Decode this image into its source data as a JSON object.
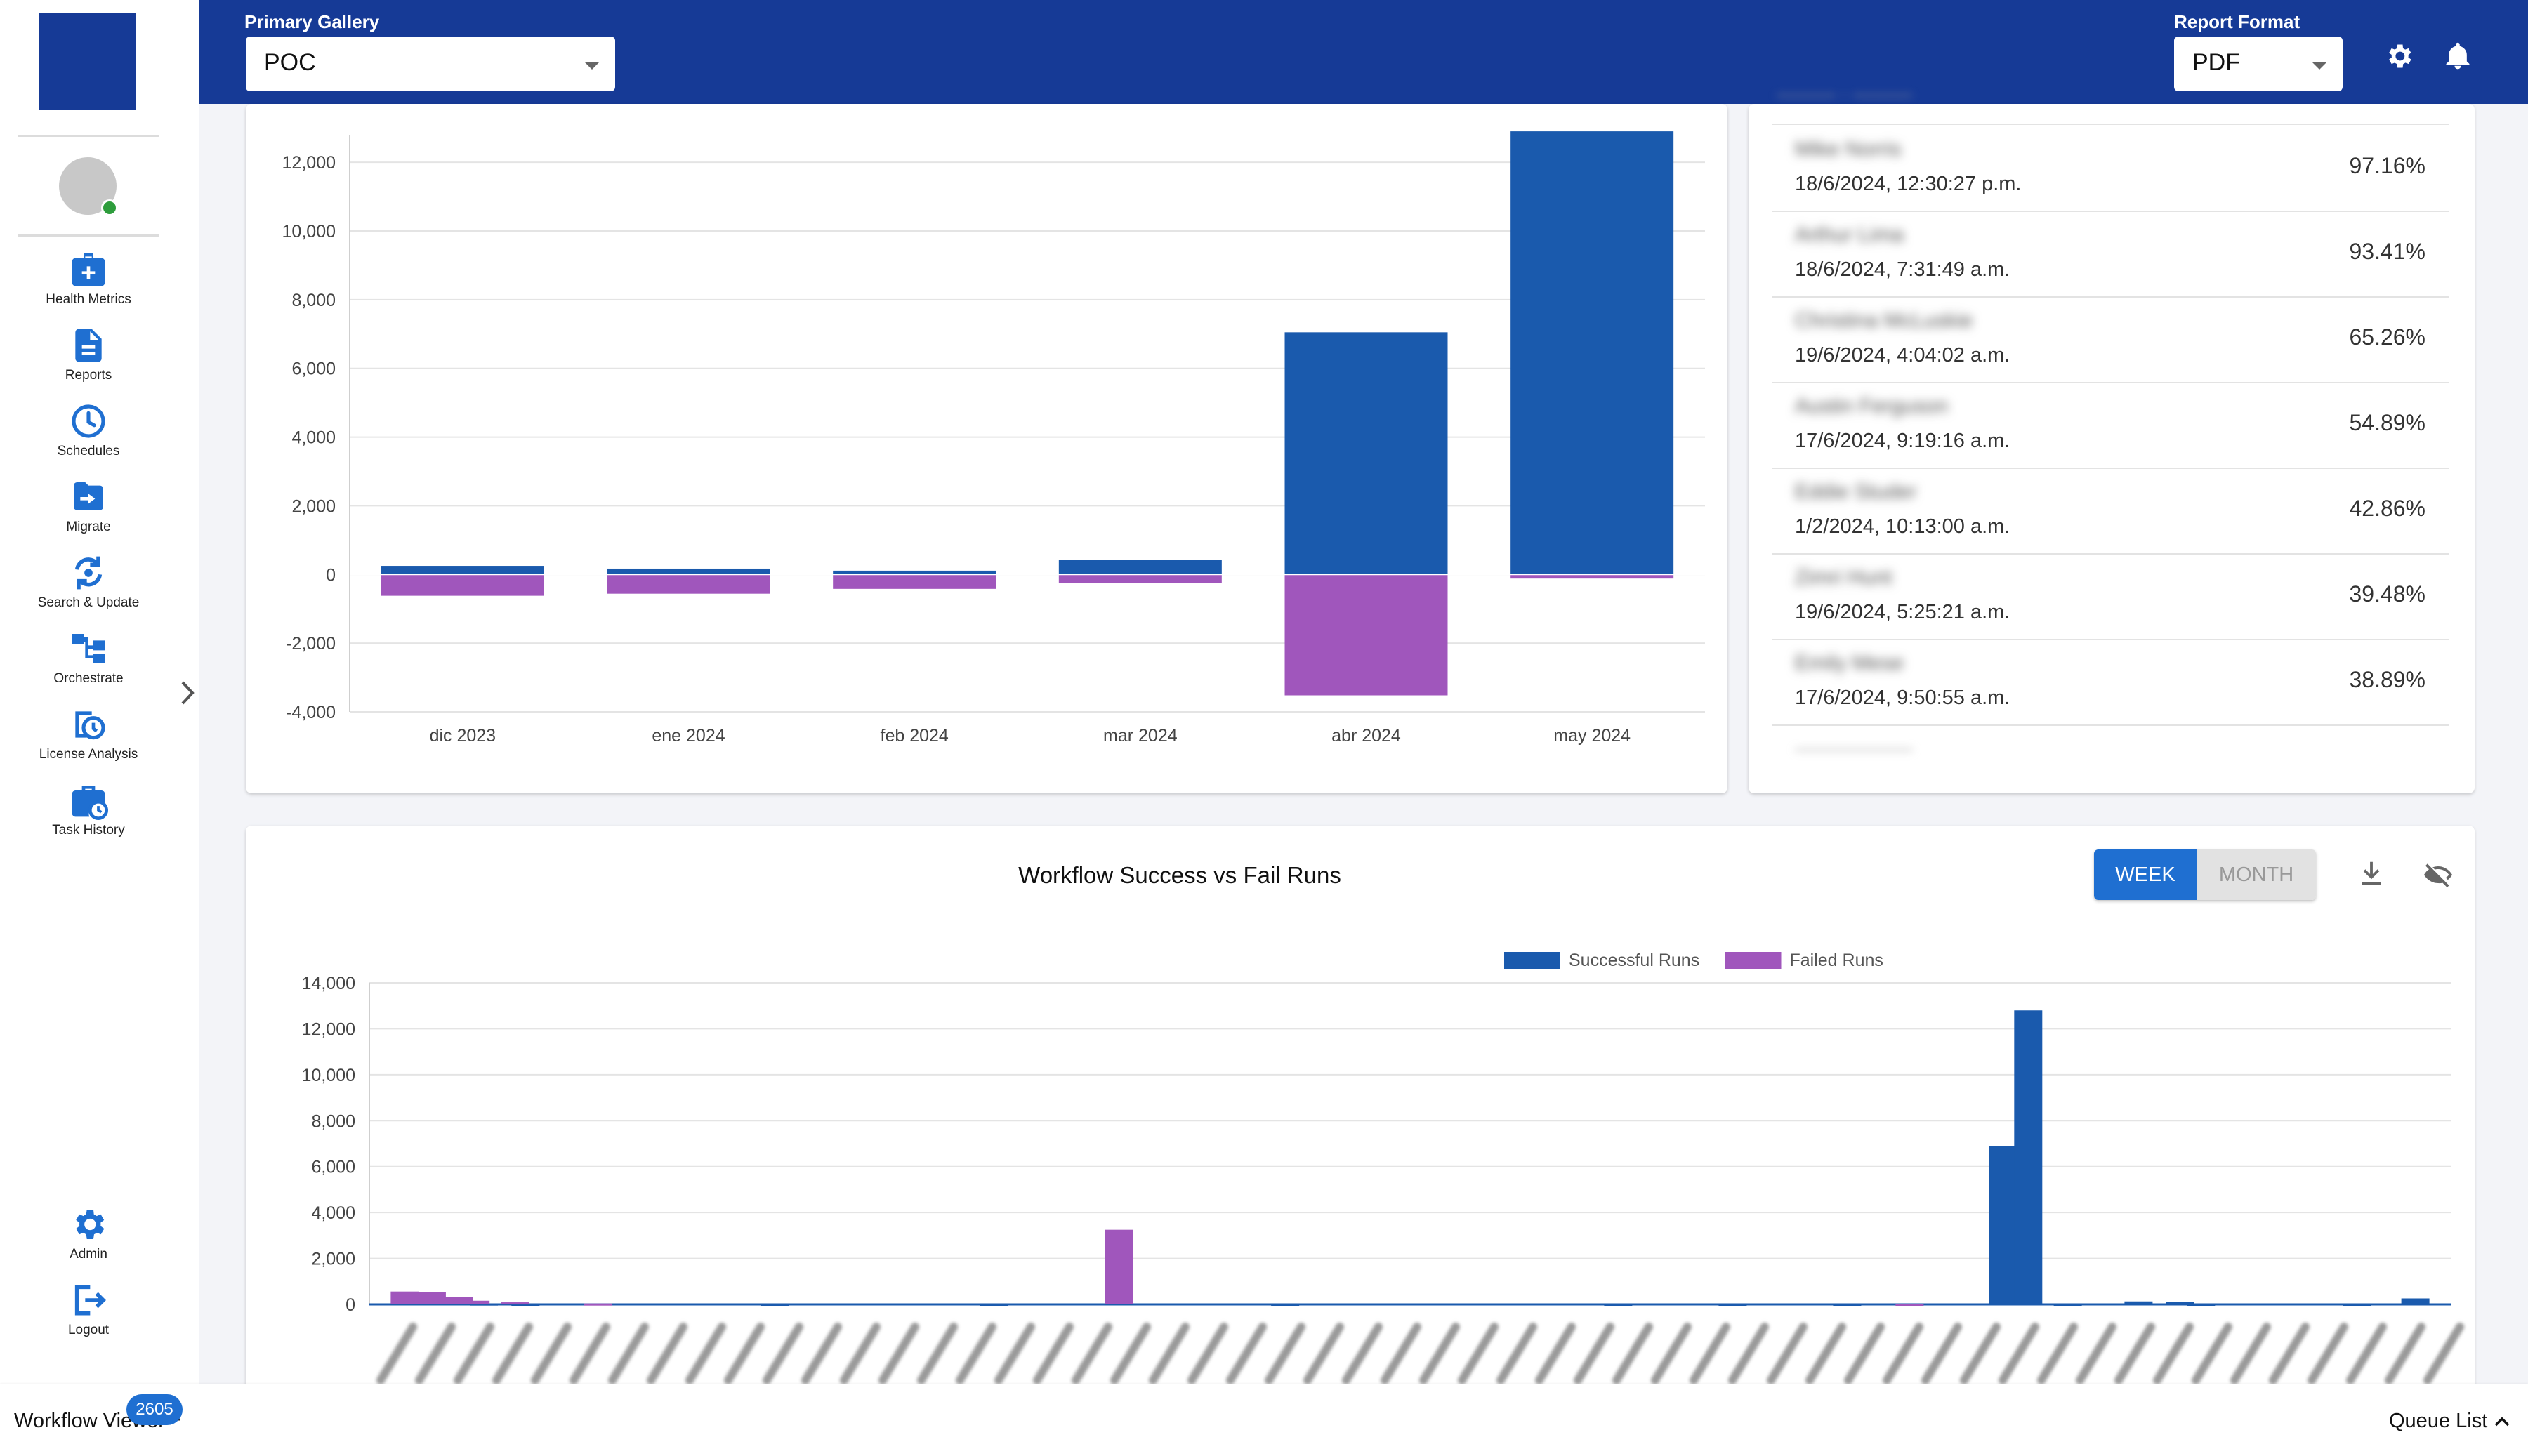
{
  "header": {
    "gallery_label": "Primary Gallery",
    "gallery_value": "POC",
    "format_label": "Report Format",
    "format_value": "PDF",
    "icons": [
      "gear-icon",
      "bell-icon"
    ]
  },
  "sidebar": {
    "items": [
      {
        "label": "Health Metrics",
        "icon": "health-metrics-icon"
      },
      {
        "label": "Reports",
        "icon": "reports-icon"
      },
      {
        "label": "Schedules",
        "icon": "clock-icon"
      },
      {
        "label": "Migrate",
        "icon": "migrate-folder-icon"
      },
      {
        "label": "Search & Update",
        "icon": "search-update-icon"
      },
      {
        "label": "Orchestrate",
        "icon": "orchestrate-icon"
      },
      {
        "label": "License Analysis",
        "icon": "license-analysis-icon"
      },
      {
        "label": "Task History",
        "icon": "task-history-icon"
      }
    ],
    "bottom_items": [
      {
        "label": "Admin",
        "icon": "gear-icon"
      },
      {
        "label": "Logout",
        "icon": "logout-icon"
      }
    ]
  },
  "ranking_list": {
    "rows": [
      {
        "name": "Mike Norris",
        "date": "18/6/2024, 12:30:27 p.m.",
        "pct": "97.16%"
      },
      {
        "name": "Arthur Lima",
        "date": "18/6/2024, 7:31:49 a.m.",
        "pct": "93.41%"
      },
      {
        "name": "Christina McLuskie",
        "date": "19/6/2024, 4:04:02 a.m.",
        "pct": "65.26%"
      },
      {
        "name": "Austin Ferguson",
        "date": "17/6/2024, 9:19:16 a.m.",
        "pct": "54.89%"
      },
      {
        "name": "Eddie Studer",
        "date": "1/2/2024, 10:13:00 a.m.",
        "pct": "42.86%"
      },
      {
        "name": "Zimri Hunt",
        "date": "19/6/2024, 5:25:21 a.m.",
        "pct": "39.48%"
      },
      {
        "name": "Emily Mese",
        "date": "17/6/2024, 9:50:55 a.m.",
        "pct": "38.89%"
      }
    ]
  },
  "workflow_panel": {
    "title": "Workflow Success vs Fail Runs",
    "toggle_week": "WEEK",
    "toggle_month": "MONTH",
    "icons": [
      "download-icon",
      "eye-off-icon"
    ]
  },
  "chart_data": [
    {
      "type": "bar",
      "stacked": true,
      "categories": [
        "dic 2023",
        "ene 2024",
        "feb 2024",
        "mar 2024",
        "abr 2024",
        "may 2024"
      ],
      "series": [
        {
          "values": [
            250,
            170,
            110,
            420,
            7050,
            12900
          ],
          "color": "#1a5aad"
        },
        {
          "values": [
            -620,
            -560,
            -420,
            -260,
            -3520,
            -120
          ],
          "color": "#a056bc"
        }
      ],
      "ylim": [
        -4000,
        12800
      ],
      "yticks": [
        -4000,
        -2000,
        0,
        2000,
        4000,
        6000,
        8000,
        10000,
        12000
      ],
      "ytick_labels": [
        "-4,000",
        "-2,000",
        "0",
        "2,000",
        "4,000",
        "6,000",
        "8,000",
        "10,000",
        "12,000"
      ],
      "grid": true
    },
    {
      "type": "bar",
      "title": "Workflow Success vs Fail Runs",
      "legend_position": "top-center",
      "series": [
        {
          "name": "Successful Runs",
          "color": "#1a5aad",
          "points": [
            [
              0.055,
              40
            ],
            [
              0.075,
              30
            ],
            [
              0.195,
              20
            ],
            [
              0.3,
              20
            ],
            [
              0.44,
              15
            ],
            [
              0.6,
              20
            ],
            [
              0.655,
              30
            ],
            [
              0.71,
              20
            ],
            [
              0.788,
              80
            ],
            [
              0.816,
              30
            ],
            [
              0.88,
              20
            ],
            [
              0.955,
              15
            ],
            [
              0.785,
              6900
            ],
            [
              0.797,
              12800
            ],
            [
              0.85,
              130
            ],
            [
              0.87,
              110
            ],
            [
              0.983,
              260
            ]
          ]
        },
        {
          "name": "Failed Runs",
          "color": "#a056bc",
          "points": [
            [
              0.017,
              560
            ],
            [
              0.03,
              540
            ],
            [
              0.043,
              310
            ],
            [
              0.051,
              160
            ],
            [
              0.07,
              90
            ],
            [
              0.11,
              40
            ],
            [
              0.36,
              3250
            ],
            [
              0.74,
              20
            ]
          ]
        }
      ],
      "ylim": [
        0,
        14000
      ],
      "yticks": [
        0,
        2000,
        4000,
        6000,
        8000,
        10000,
        12000,
        14000
      ],
      "ytick_labels": [
        "0",
        "2,000",
        "4,000",
        "6,000",
        "8,000",
        "10,000",
        "12,000",
        "14,000"
      ],
      "grid": true
    }
  ],
  "bottom_bar": {
    "workflow_viewer": "Workflow Viewer",
    "badge_count": "2605",
    "queue_list": "Queue List"
  }
}
